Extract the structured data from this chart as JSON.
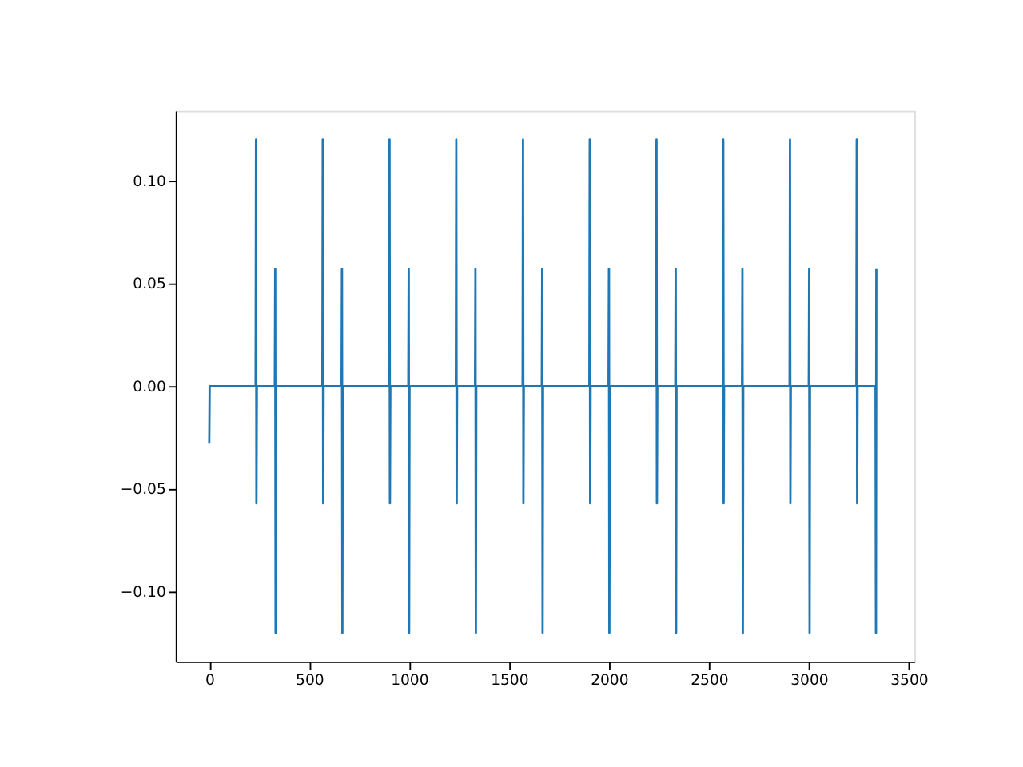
{
  "chart_data": {
    "type": "line",
    "x": [
      0,
      2,
      232,
      234,
      236,
      238,
      328,
      330,
      332,
      334,
      566,
      568,
      570,
      572,
      662,
      664,
      666,
      668,
      900,
      902,
      904,
      906,
      996,
      998,
      1000,
      1002,
      1234,
      1236,
      1238,
      1240,
      1330,
      1332,
      1334,
      1336,
      1568,
      1570,
      1572,
      1574,
      1664,
      1666,
      1668,
      1670,
      1902,
      1904,
      1906,
      1908,
      1998,
      2000,
      2002,
      2004,
      2236,
      2238,
      2240,
      2242,
      2332,
      2334,
      2336,
      2338,
      2570,
      2572,
      2574,
      2576,
      2666,
      2668,
      2670,
      2672,
      2904,
      2906,
      2908,
      2910,
      3000,
      3002,
      3004,
      3006,
      3238,
      3240,
      3242,
      3244,
      3334,
      3336,
      3338
    ],
    "series": [
      {
        "color": "#1f77b4",
        "values": [
          -0.028,
          0,
          0,
          0.12,
          -0.057,
          0,
          0,
          0.057,
          -0.12,
          0,
          0,
          0.12,
          -0.057,
          0,
          0,
          0.057,
          -0.12,
          0,
          0,
          0.12,
          -0.057,
          0,
          0,
          0.057,
          -0.12,
          0,
          0,
          0.12,
          -0.057,
          0,
          0,
          0.057,
          -0.12,
          0,
          0,
          0.12,
          -0.057,
          0,
          0,
          0.057,
          -0.12,
          0,
          0,
          0.12,
          -0.057,
          0,
          0,
          0.057,
          -0.12,
          0,
          0,
          0.12,
          -0.057,
          0,
          0,
          0.057,
          -0.12,
          0,
          0,
          0.12,
          -0.057,
          0,
          0,
          0.057,
          -0.12,
          0,
          0,
          0.12,
          -0.057,
          0,
          0,
          0.057,
          -0.12,
          0,
          0,
          0.12,
          -0.057,
          0,
          0,
          -0.12,
          0.057
        ]
      }
    ],
    "xlim": [
      -168,
      3528
    ],
    "ylim": [
      -0.134,
      0.134
    ],
    "xticks": [
      0,
      500,
      1000,
      1500,
      2000,
      2500,
      3000,
      3500
    ],
    "yticks": [
      {
        "value": -0.1,
        "label": "−0.10"
      },
      {
        "value": -0.05,
        "label": "−0.05"
      },
      {
        "value": 0,
        "label": "0.00"
      },
      {
        "value": 0.05,
        "label": "0.05"
      },
      {
        "value": 0.1,
        "label": "0.10"
      }
    ],
    "grid": false,
    "marker": "none",
    "line_style": "solid"
  }
}
